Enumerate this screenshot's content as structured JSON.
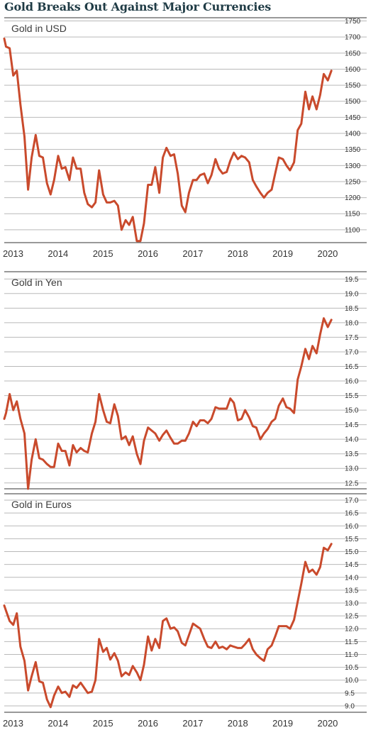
{
  "title": "Gold Breaks Out Against Major Currencies",
  "colors": {
    "line": "#c94a2c",
    "grid": "#b9b9b9",
    "title": "#1f3b45"
  },
  "chart_data": [
    {
      "type": "line",
      "title": "Gold in USD",
      "x_ticks": [
        "2013",
        "2014",
        "2015",
        "2016",
        "2017",
        "2018",
        "2019",
        "2020"
      ],
      "y_ticks": [
        "1750",
        "1700",
        "1650",
        "1600",
        "1550",
        "1500",
        "1450",
        "1400",
        "1350",
        "1300",
        "1250",
        "1200",
        "1150",
        "1100"
      ],
      "ylim": [
        1060,
        1760
      ],
      "xlim": [
        2013.0,
        2020.45
      ],
      "series": [
        {
          "x": [
            2013.0,
            2013.04,
            2013.12,
            2013.2,
            2013.28,
            2013.36,
            2013.45,
            2013.53,
            2013.61,
            2013.7,
            2013.78,
            2013.86,
            2013.95,
            2014.03,
            2014.11,
            2014.2,
            2014.28,
            2014.36,
            2014.45,
            2014.53,
            2014.61,
            2014.7,
            2014.78,
            2014.86,
            2014.95,
            2015.03,
            2015.11,
            2015.2,
            2015.28,
            2015.36,
            2015.45,
            2015.53,
            2015.61,
            2015.7,
            2015.78,
            2015.86,
            2015.95,
            2016.03,
            2016.11,
            2016.2,
            2016.28,
            2016.36,
            2016.45,
            2016.53,
            2016.61,
            2016.7,
            2016.78,
            2016.86,
            2016.95,
            2017.03,
            2017.11,
            2017.2,
            2017.28,
            2017.36,
            2017.45,
            2017.53,
            2017.61,
            2017.7,
            2017.78,
            2017.86,
            2017.95,
            2018.03,
            2018.11,
            2018.2,
            2018.28,
            2018.36,
            2018.45,
            2018.53,
            2018.61,
            2018.7,
            2018.78,
            2018.86,
            2018.95,
            2019.03,
            2019.11,
            2019.2,
            2019.28,
            2019.36,
            2019.45,
            2019.53,
            2019.61,
            2019.7,
            2019.78,
            2019.86,
            2019.95,
            2020.03,
            2020.11,
            2020.2,
            2020.28
          ],
          "y": [
            1695,
            1670,
            1665,
            1580,
            1595,
            1490,
            1390,
            1225,
            1325,
            1395,
            1330,
            1325,
            1245,
            1210,
            1255,
            1330,
            1290,
            1295,
            1255,
            1325,
            1290,
            1290,
            1215,
            1180,
            1170,
            1185,
            1285,
            1210,
            1185,
            1185,
            1190,
            1175,
            1100,
            1130,
            1115,
            1140,
            1065,
            1065,
            1120,
            1240,
            1240,
            1295,
            1215,
            1325,
            1355,
            1330,
            1335,
            1275,
            1175,
            1155,
            1215,
            1255,
            1255,
            1270,
            1275,
            1245,
            1270,
            1320,
            1290,
            1275,
            1280,
            1315,
            1340,
            1320,
            1330,
            1325,
            1310,
            1255,
            1235,
            1215,
            1200,
            1215,
            1225,
            1275,
            1325,
            1320,
            1300,
            1285,
            1310,
            1410,
            1430,
            1530,
            1475,
            1515,
            1475,
            1520,
            1585,
            1565,
            1595
          ]
        }
      ]
    },
    {
      "type": "line",
      "title": "Gold in Yen",
      "x_ticks": [],
      "y_ticks": [
        "19.5",
        "19.0",
        "18.5",
        "18.0",
        "17.5",
        "17.0",
        "16.5",
        "16.0",
        "15.5",
        "15.0",
        "14.5",
        "14.0",
        "13.5",
        "13.0",
        "12.5"
      ],
      "ylim": [
        12.3,
        19.75
      ],
      "xlim": [
        2013.0,
        2020.45
      ],
      "series": [
        {
          "x": [
            2013.0,
            2013.04,
            2013.12,
            2013.2,
            2013.28,
            2013.36,
            2013.45,
            2013.53,
            2013.61,
            2013.7,
            2013.78,
            2013.86,
            2013.95,
            2014.03,
            2014.11,
            2014.2,
            2014.28,
            2014.36,
            2014.45,
            2014.53,
            2014.61,
            2014.7,
            2014.78,
            2014.86,
            2014.95,
            2015.03,
            2015.11,
            2015.2,
            2015.28,
            2015.36,
            2015.45,
            2015.53,
            2015.61,
            2015.7,
            2015.78,
            2015.86,
            2015.95,
            2016.03,
            2016.11,
            2016.2,
            2016.28,
            2016.36,
            2016.45,
            2016.53,
            2016.61,
            2016.7,
            2016.78,
            2016.86,
            2016.95,
            2017.03,
            2017.11,
            2017.2,
            2017.28,
            2017.36,
            2017.45,
            2017.53,
            2017.61,
            2017.7,
            2017.78,
            2017.86,
            2017.95,
            2018.03,
            2018.11,
            2018.2,
            2018.28,
            2018.36,
            2018.45,
            2018.53,
            2018.61,
            2018.7,
            2018.78,
            2018.86,
            2018.95,
            2019.03,
            2019.11,
            2019.2,
            2019.28,
            2019.36,
            2019.45,
            2019.53,
            2019.61,
            2019.7,
            2019.78,
            2019.86,
            2019.95,
            2020.03,
            2020.11,
            2020.2,
            2020.28
          ],
          "y": [
            14.7,
            14.9,
            15.55,
            15.0,
            15.3,
            14.7,
            14.2,
            12.3,
            13.3,
            14.0,
            13.35,
            13.3,
            13.15,
            13.05,
            13.05,
            13.85,
            13.6,
            13.6,
            13.1,
            13.8,
            13.55,
            13.7,
            13.6,
            13.55,
            14.2,
            14.6,
            15.55,
            15.0,
            14.6,
            14.55,
            15.2,
            14.8,
            14.0,
            14.1,
            13.8,
            14.1,
            13.5,
            13.15,
            13.95,
            14.4,
            14.3,
            14.2,
            13.95,
            14.15,
            14.3,
            14.05,
            13.85,
            13.85,
            13.95,
            13.95,
            14.2,
            14.6,
            14.45,
            14.65,
            14.65,
            14.55,
            14.7,
            15.1,
            15.05,
            15.05,
            15.05,
            15.4,
            15.25,
            14.65,
            14.7,
            15.0,
            14.75,
            14.45,
            14.4,
            14.0,
            14.2,
            14.35,
            14.6,
            14.7,
            15.15,
            15.4,
            15.1,
            15.05,
            14.9,
            16.05,
            16.5,
            17.1,
            16.75,
            17.2,
            16.95,
            17.6,
            18.15,
            17.85,
            18.1
          ]
        }
      ]
    },
    {
      "type": "line",
      "title": "Gold in Euros",
      "x_ticks": [
        "2013",
        "2014",
        "2015",
        "2016",
        "2017",
        "2018",
        "2019",
        "2020"
      ],
      "y_ticks": [
        "17.0",
        "16.5",
        "16.0",
        "15.5",
        "15.0",
        "14.5",
        "14.0",
        "13.5",
        "13.0",
        "12.5",
        "12.0",
        "11.5",
        "11.0",
        "10.5",
        "10.0",
        "9.5",
        "9.0"
      ],
      "ylim": [
        8.75,
        17.25
      ],
      "xlim": [
        2013.0,
        2020.45
      ],
      "series": [
        {
          "x": [
            2013.0,
            2013.04,
            2013.12,
            2013.2,
            2013.28,
            2013.36,
            2013.45,
            2013.53,
            2013.61,
            2013.7,
            2013.78,
            2013.86,
            2013.95,
            2014.03,
            2014.11,
            2014.2,
            2014.28,
            2014.36,
            2014.45,
            2014.53,
            2014.61,
            2014.7,
            2014.78,
            2014.86,
            2014.95,
            2015.03,
            2015.11,
            2015.2,
            2015.28,
            2015.36,
            2015.45,
            2015.53,
            2015.61,
            2015.7,
            2015.78,
            2015.86,
            2015.95,
            2016.03,
            2016.11,
            2016.2,
            2016.28,
            2016.36,
            2016.45,
            2016.53,
            2016.61,
            2016.7,
            2016.78,
            2016.86,
            2016.95,
            2017.03,
            2017.11,
            2017.2,
            2017.28,
            2017.36,
            2017.45,
            2017.53,
            2017.61,
            2017.7,
            2017.78,
            2017.86,
            2017.95,
            2018.03,
            2018.11,
            2018.2,
            2018.28,
            2018.36,
            2018.45,
            2018.53,
            2018.61,
            2018.7,
            2018.78,
            2018.86,
            2018.95,
            2019.03,
            2019.11,
            2019.2,
            2019.28,
            2019.36,
            2019.45,
            2019.53,
            2019.61,
            2019.7,
            2019.78,
            2019.86,
            2019.95,
            2020.03,
            2020.11,
            2020.2,
            2020.28
          ],
          "y": [
            12.9,
            12.7,
            12.3,
            12.15,
            12.6,
            11.3,
            10.75,
            9.6,
            10.15,
            10.7,
            9.95,
            9.9,
            9.25,
            8.95,
            9.4,
            9.75,
            9.5,
            9.55,
            9.35,
            9.8,
            9.7,
            9.9,
            9.7,
            9.5,
            9.55,
            10.0,
            11.6,
            11.1,
            11.25,
            10.8,
            11.05,
            10.75,
            10.15,
            10.3,
            10.2,
            10.55,
            10.3,
            10.0,
            10.6,
            11.7,
            11.15,
            11.6,
            11.25,
            12.3,
            12.4,
            12.0,
            12.05,
            11.9,
            11.45,
            11.35,
            11.75,
            12.2,
            12.1,
            12.0,
            11.6,
            11.3,
            11.25,
            11.5,
            11.25,
            11.3,
            11.2,
            11.35,
            11.3,
            11.25,
            11.25,
            11.4,
            11.6,
            11.2,
            11.0,
            10.85,
            10.75,
            11.2,
            11.35,
            11.7,
            12.1,
            12.1,
            12.1,
            12.0,
            12.35,
            13.05,
            13.75,
            14.6,
            14.2,
            14.3,
            14.1,
            14.4,
            15.15,
            15.05,
            15.3
          ]
        }
      ]
    }
  ]
}
